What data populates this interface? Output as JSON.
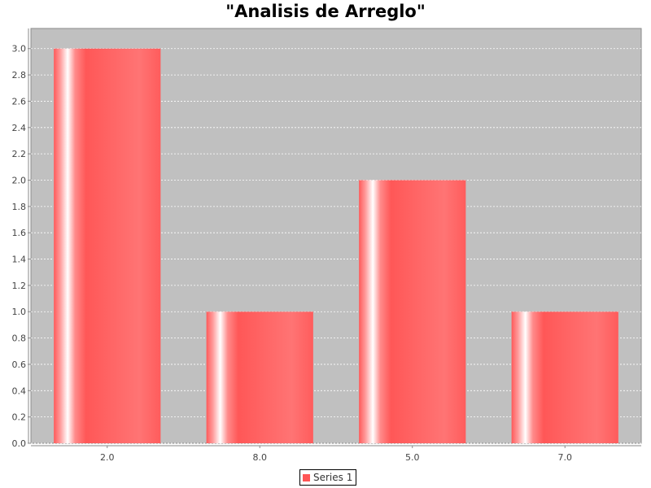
{
  "chart_data": {
    "type": "bar",
    "title": "\"Analisis de Arreglo\"",
    "xlabel": "",
    "ylabel": "",
    "categories": [
      "2.0",
      "8.0",
      "5.0",
      "7.0"
    ],
    "series": [
      {
        "name": "Series 1",
        "values": [
          3.0,
          1.0,
          2.0,
          1.0
        ]
      }
    ],
    "ylim": [
      0,
      3.0
    ],
    "ytick_step": 0.2,
    "grid": true,
    "legend_position": "bottom",
    "colors": {
      "bar": "#ff5555",
      "plot_background": "#c0c0c0",
      "gridline": "#ffffff"
    }
  }
}
